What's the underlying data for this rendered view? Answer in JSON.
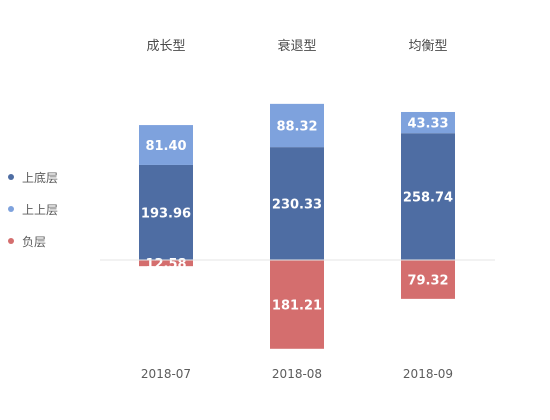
{
  "chart_data": {
    "type": "bar",
    "stacked": true,
    "categories": [
      "2018-07",
      "2018-08",
      "2018-09"
    ],
    "column_titles": [
      "成长型",
      "衰退型",
      "均衡型"
    ],
    "series": [
      {
        "name": "上底层",
        "color": "#4e6da3",
        "values": [
          193.96,
          230.33,
          258.74
        ]
      },
      {
        "name": "上上层",
        "color": "#7ea2dd",
        "values": [
          81.4,
          88.32,
          43.33
        ]
      },
      {
        "name": "负层",
        "color": "#d46e6e",
        "values": [
          -12.58,
          -181.21,
          -79.32
        ]
      }
    ],
    "value_labels": [
      [
        "193.96",
        "230.33",
        "258.74"
      ],
      [
        "81.40",
        "88.32",
        "43.33"
      ],
      [
        "12.58",
        "181.21",
        "79.32"
      ]
    ],
    "legend_position": "left",
    "grid": false,
    "baseline_color": "#e5e5e5"
  }
}
